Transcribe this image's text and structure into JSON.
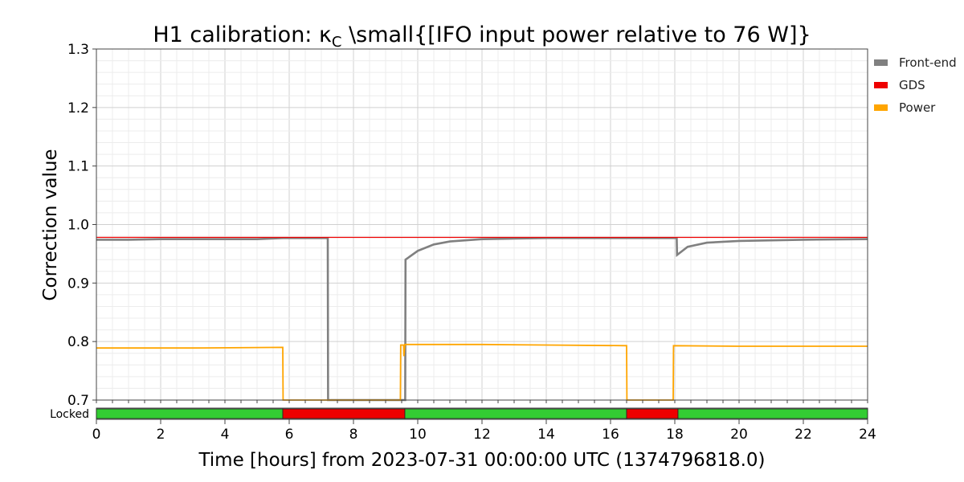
{
  "chart_data": {
    "type": "line",
    "title": "H1 calibration: κ",
    "title_sub": "C",
    "title_tail": " \\small{[IFO input power relative to 76 W]}",
    "xlabel": "Time [hours] from 2023-07-31 00:00:00 UTC (1374796818.0)",
    "ylabel": "Correction value",
    "xlim": [
      0,
      24
    ],
    "ylim": [
      0.7,
      1.3
    ],
    "xticks": [
      0,
      2,
      4,
      6,
      8,
      10,
      12,
      14,
      16,
      18,
      20,
      22,
      24
    ],
    "yticks": [
      0.7,
      0.8,
      0.9,
      1.0,
      1.1,
      1.2,
      1.3
    ],
    "ytick_labels": [
      "0.7",
      "0.8",
      "0.9",
      "1.0",
      "1.1",
      "1.2",
      "1.3"
    ],
    "grid": true,
    "legend_position": "outside-right-top",
    "series": [
      {
        "name": "Front-end",
        "color": "#808080",
        "x": [
          0,
          1,
          2,
          3,
          4,
          5,
          5.8,
          7.2,
          7.21,
          9.61,
          9.62,
          10.0,
          10.5,
          11,
          12,
          13,
          14,
          15,
          16,
          17,
          18.06,
          18.07,
          18.4,
          19,
          20,
          22,
          24
        ],
        "y": [
          0.974,
          0.974,
          0.975,
          0.975,
          0.975,
          0.975,
          0.977,
          0.977,
          0.7,
          0.7,
          0.94,
          0.955,
          0.966,
          0.971,
          0.975,
          0.976,
          0.977,
          0.977,
          0.977,
          0.977,
          0.977,
          0.948,
          0.962,
          0.969,
          0.972,
          0.974,
          0.975
        ]
      },
      {
        "name": "GDS",
        "color": "#ee0000",
        "x": [
          0,
          24
        ],
        "y": [
          0.978,
          0.978
        ]
      },
      {
        "name": "Power",
        "color": "#ffa500",
        "x": [
          0,
          3,
          5.8,
          5.81,
          9.46,
          9.47,
          9.56,
          9.57,
          9.6,
          12,
          14,
          16.5,
          16.51,
          17.95,
          17.96,
          20,
          24
        ],
        "y": [
          0.789,
          0.789,
          0.79,
          0.7,
          0.7,
          0.794,
          0.794,
          0.775,
          0.795,
          0.795,
          0.794,
          0.793,
          0.7,
          0.7,
          0.793,
          0.792,
          0.792
        ]
      }
    ],
    "lock_segments": {
      "label": "Locked",
      "segments": [
        {
          "start": 0,
          "end": 5.8,
          "state": "locked"
        },
        {
          "start": 5.8,
          "end": 9.6,
          "state": "unlocked"
        },
        {
          "start": 9.6,
          "end": 16.5,
          "state": "locked"
        },
        {
          "start": 16.5,
          "end": 18.1,
          "state": "unlocked"
        },
        {
          "start": 18.1,
          "end": 24,
          "state": "locked"
        }
      ],
      "locked_color": "#33cc33",
      "unlocked_color": "#ee0000"
    }
  }
}
